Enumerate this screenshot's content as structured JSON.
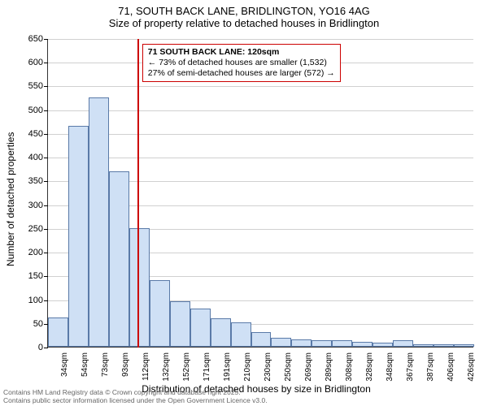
{
  "title_line1": "71, SOUTH BACK LANE, BRIDLINGTON, YO16 4AG",
  "title_line2": "Size of property relative to detached houses in Bridlington",
  "y_axis_title": "Number of detached properties",
  "x_axis_title": "Distribution of detached houses by size in Bridlington",
  "disclaimer_line1": "Contains HM Land Registry data © Crown copyright and database right 2025.",
  "disclaimer_line2": "Contains public sector information licensed under the Open Government Licence v3.0.",
  "callout": {
    "line1": "71 SOUTH BACK LANE: 120sqm",
    "line2": "← 73% of detached houses are smaller (1,532)",
    "line3": "27% of semi-detached houses are larger (572) →"
  },
  "chart": {
    "type": "histogram",
    "ylim": [
      0,
      650
    ],
    "ytick_step": 50,
    "vrule_x_index": 4.4,
    "background_color": "#ffffff",
    "grid_color": "#d0d0d0",
    "bar_fill": "#cfe0f5",
    "bar_stroke": "#5a7aa8",
    "callout_border": "#cc0000",
    "vrule_color": "#cc0000",
    "title_fontsize": 13,
    "axis_label_fontsize": 12,
    "tick_fontsize": 11,
    "xtick_fontsize": 10,
    "categories": [
      "34sqm",
      "54sqm",
      "73sqm",
      "93sqm",
      "112sqm",
      "132sqm",
      "152sqm",
      "171sqm",
      "191sqm",
      "210sqm",
      "230sqm",
      "250sqm",
      "269sqm",
      "289sqm",
      "308sqm",
      "328sqm",
      "348sqm",
      "367sqm",
      "387sqm",
      "406sqm",
      "426sqm"
    ],
    "values": [
      62,
      465,
      525,
      370,
      250,
      140,
      95,
      80,
      60,
      52,
      30,
      18,
      15,
      14,
      13,
      10,
      8,
      14,
      6,
      5,
      5
    ]
  }
}
